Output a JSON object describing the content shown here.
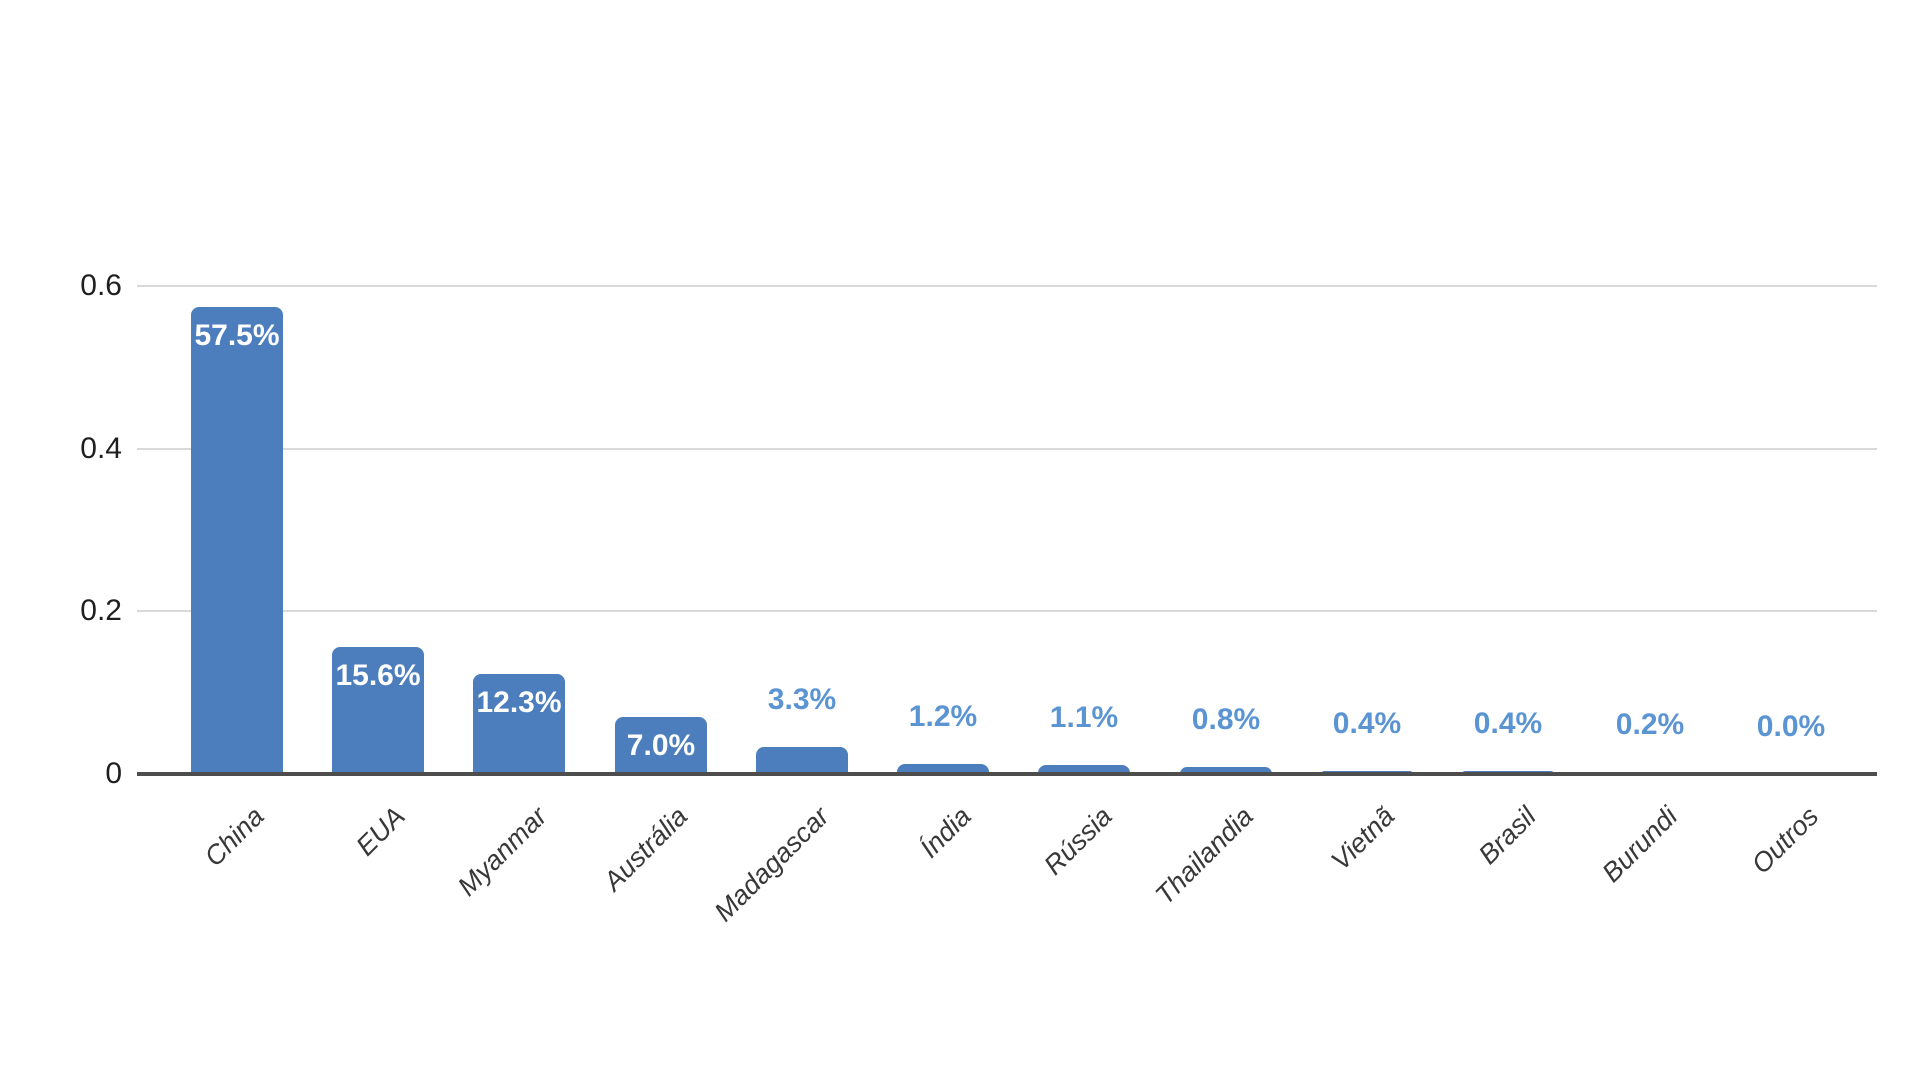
{
  "chart_data": {
    "type": "bar",
    "title": "",
    "xlabel": "",
    "ylabel": "",
    "categories": [
      "China",
      "EUA",
      "Myanmar",
      "Austrália",
      "Madagascar",
      "Índia",
      "Rússia",
      "Thailandia",
      "Vietnã",
      "Brasil",
      "Burundi",
      "Outros"
    ],
    "values": [
      0.575,
      0.156,
      0.123,
      0.07,
      0.033,
      0.012,
      0.011,
      0.008,
      0.004,
      0.004,
      0.002,
      0.0
    ],
    "value_labels": [
      "57.5%",
      "15.6%",
      "12.3%",
      "7.0%",
      "3.3%",
      "1.2%",
      "1.1%",
      "0.8%",
      "0.4%",
      "0.4%",
      "0.2%",
      "0.0%"
    ],
    "label_placement": [
      "inside",
      "inside",
      "inside",
      "inside",
      "outside",
      "outside",
      "outside",
      "outside",
      "outside",
      "outside",
      "outside",
      "outside"
    ],
    "ylim": [
      0,
      0.6
    ],
    "yticks": [
      {
        "label": "0",
        "value": 0
      },
      {
        "label": "0.2",
        "value": 0.2
      },
      {
        "label": "0.4",
        "value": 0.4
      },
      {
        "label": "0.6",
        "value": 0.6
      }
    ],
    "grid": true,
    "legend": false,
    "colors": {
      "bar": "#4c7ebd",
      "value_label_inside": "#ffffff",
      "value_label_outside": "#5b94d2",
      "axis_line": "#4d4d4d",
      "gridline": "#d9d9d9",
      "tick_label": "#1f1f1f",
      "category_label": "#383838",
      "background": "#ffffff"
    }
  }
}
